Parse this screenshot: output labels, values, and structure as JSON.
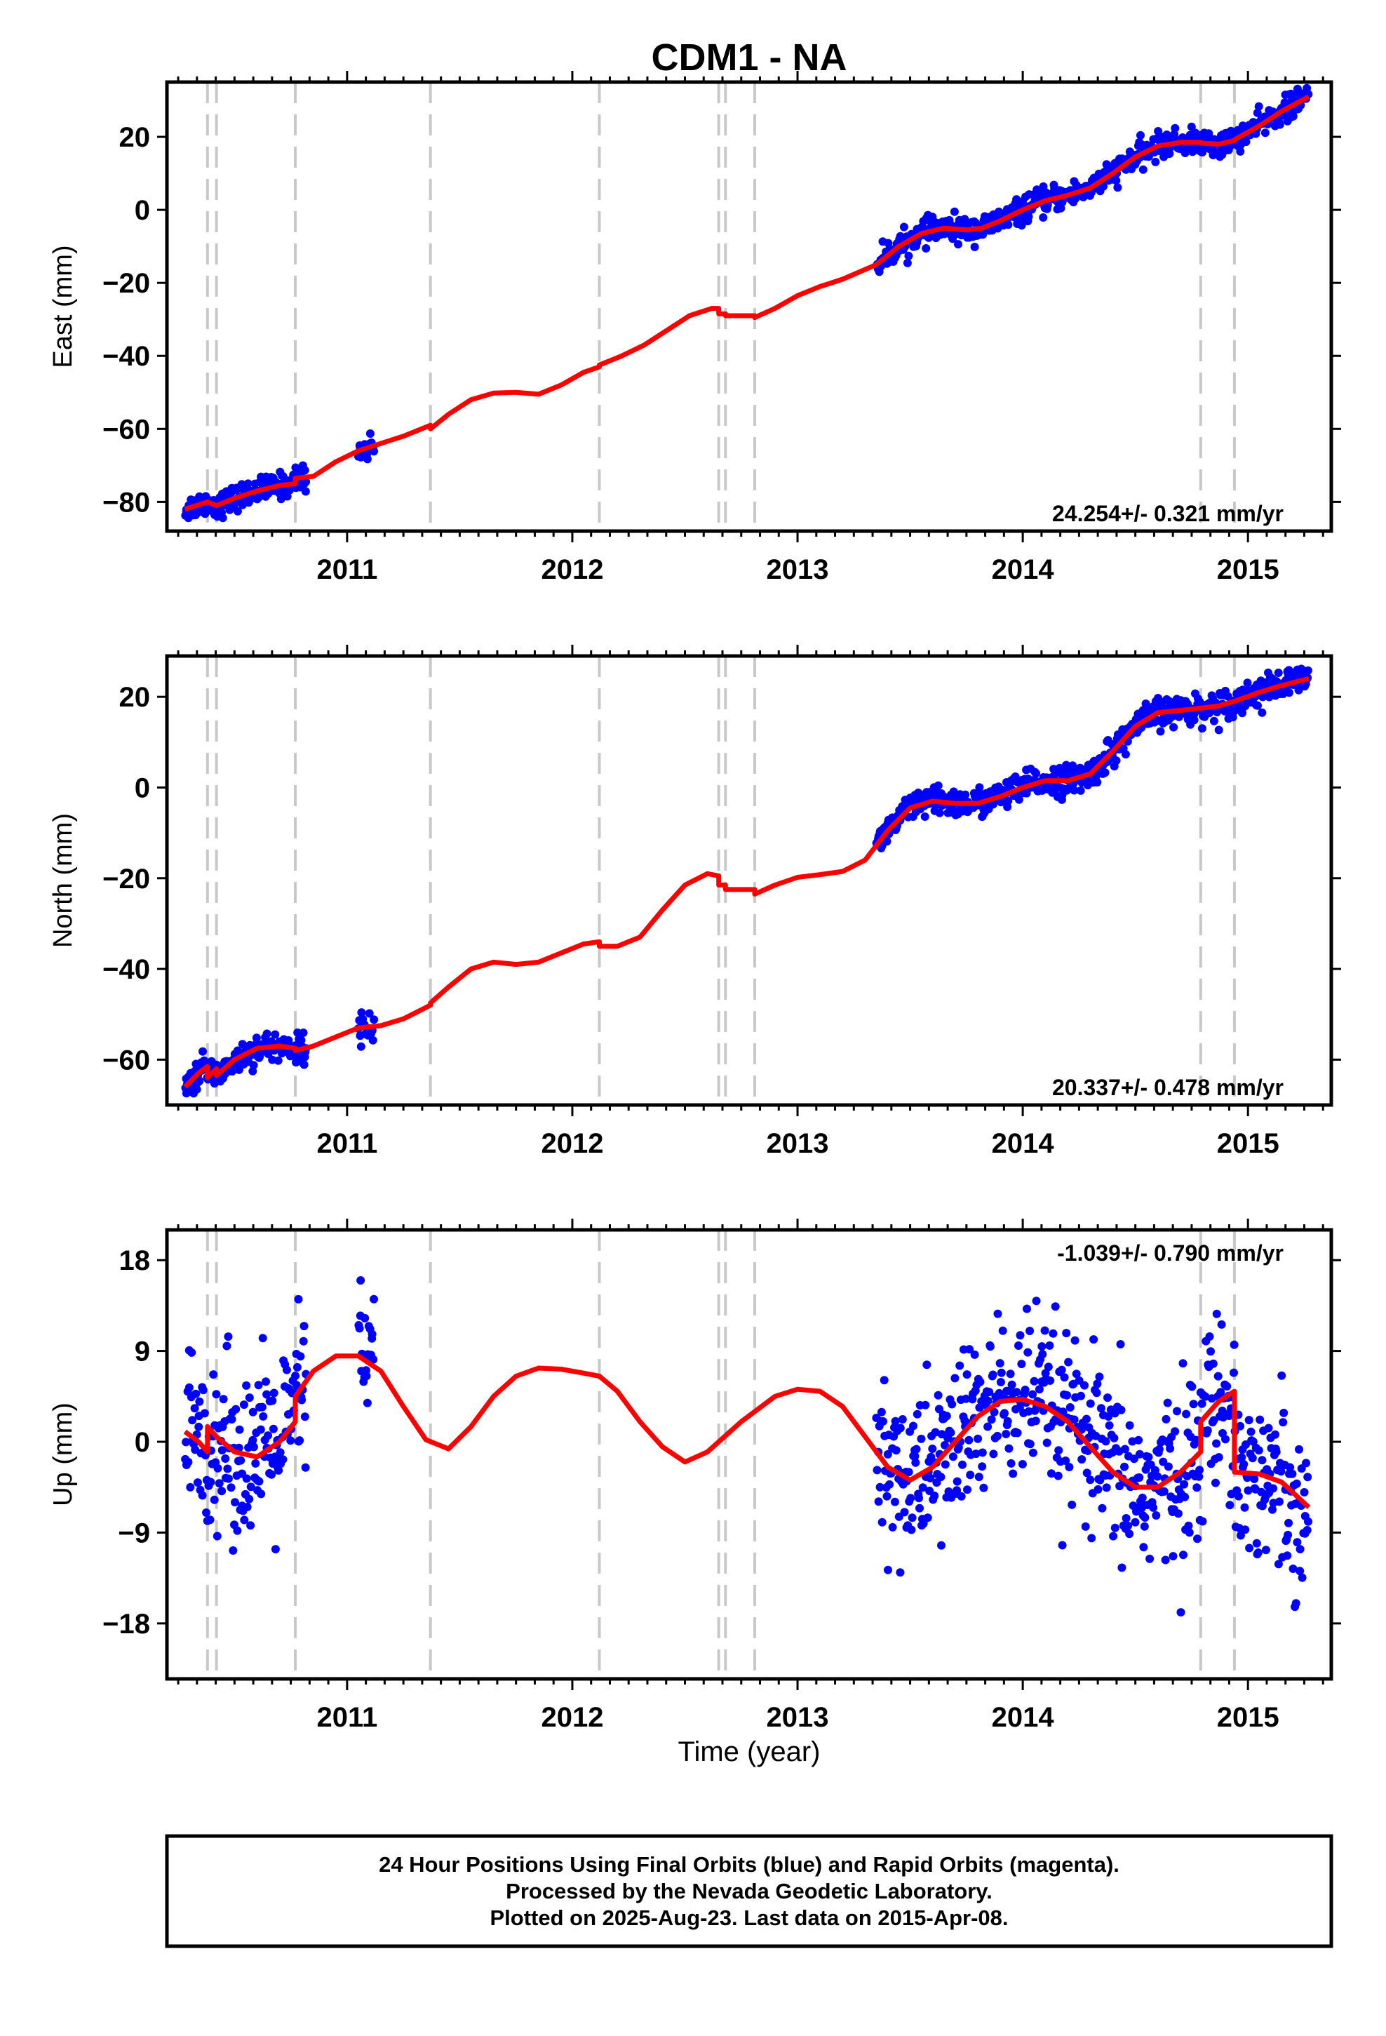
{
  "title": "CDM1 - NA",
  "xlabel": "Time (year)",
  "xtick_labels": [
    "2011",
    "2012",
    "2013",
    "2014",
    "2015"
  ],
  "colors": {
    "points": "#0000ff",
    "model": "#ff0000",
    "dashed_lines": "#c8c8c8"
  },
  "footer": {
    "line1": "24 Hour Positions Using Final Orbits (blue) and Rapid Orbits (magenta).",
    "line2": "Processed by the Nevada Geodetic Laboratory.",
    "line3": "Plotted on 2025-Aug-23. Last data on 2015-Apr-08."
  },
  "chart_data": [
    {
      "type": "scatter",
      "title": "CDM1 - NA",
      "ylabel": "East (mm)",
      "xlim": [
        2010.2,
        2015.37
      ],
      "ylim": [
        -88,
        35
      ],
      "yticks": [
        -80,
        -60,
        -40,
        -20,
        0,
        20
      ],
      "rate_label": "24.254+/- 0.321 mm/yr",
      "rate_position": "bottom-right",
      "step_lines": [
        2010.38,
        2010.42,
        2010.77,
        2011.37,
        2012.12,
        2012.65,
        2012.68,
        2012.81,
        2014.79,
        2014.94
      ],
      "data_spans": [
        [
          2010.28,
          2010.82
        ],
        [
          2011.05,
          2011.12
        ],
        [
          2013.35,
          2015.27
        ]
      ],
      "point_spread": 1.7,
      "model_line": [
        [
          2010.28,
          -82
        ],
        [
          2010.38,
          -80
        ],
        [
          2010.42,
          -81
        ],
        [
          2010.5,
          -79
        ],
        [
          2010.6,
          -77
        ],
        [
          2010.7,
          -75.5
        ],
        [
          2010.77,
          -75
        ],
        [
          2010.77,
          -73.5
        ],
        [
          2010.85,
          -73
        ],
        [
          2010.95,
          -69
        ],
        [
          2011.05,
          -66
        ],
        [
          2011.15,
          -64
        ],
        [
          2011.25,
          -62
        ],
        [
          2011.37,
          -59
        ],
        [
          2011.37,
          -60
        ],
        [
          2011.45,
          -56
        ],
        [
          2011.55,
          -52
        ],
        [
          2011.65,
          -50.2
        ],
        [
          2011.75,
          -50
        ],
        [
          2011.85,
          -50.5
        ],
        [
          2011.95,
          -48
        ],
        [
          2012.05,
          -44.5
        ],
        [
          2012.12,
          -43
        ],
        [
          2012.12,
          -42.5
        ],
        [
          2012.22,
          -40
        ],
        [
          2012.32,
          -37
        ],
        [
          2012.42,
          -33
        ],
        [
          2012.52,
          -29
        ],
        [
          2012.62,
          -27
        ],
        [
          2012.65,
          -27
        ],
        [
          2012.65,
          -28.5
        ],
        [
          2012.68,
          -28.5
        ],
        [
          2012.68,
          -29
        ],
        [
          2012.81,
          -29
        ],
        [
          2012.81,
          -29.5
        ],
        [
          2012.9,
          -27
        ],
        [
          2013.0,
          -23.5
        ],
        [
          2013.1,
          -21
        ],
        [
          2013.2,
          -19
        ],
        [
          2013.35,
          -15
        ],
        [
          2013.45,
          -10
        ],
        [
          2013.55,
          -6.5
        ],
        [
          2013.65,
          -5
        ],
        [
          2013.75,
          -5.5
        ],
        [
          2013.82,
          -5
        ],
        [
          2013.9,
          -3
        ],
        [
          2014.0,
          0
        ],
        [
          2014.1,
          2.5
        ],
        [
          2014.2,
          4
        ],
        [
          2014.3,
          6
        ],
        [
          2014.4,
          10
        ],
        [
          2014.5,
          14.5
        ],
        [
          2014.6,
          17.5
        ],
        [
          2014.7,
          18.5
        ],
        [
          2014.79,
          18.5
        ],
        [
          2014.79,
          18.3
        ],
        [
          2014.87,
          18
        ],
        [
          2014.94,
          19
        ],
        [
          2014.94,
          19.2
        ],
        [
          2015.05,
          23
        ],
        [
          2015.15,
          27
        ],
        [
          2015.27,
          31
        ]
      ]
    },
    {
      "type": "scatter",
      "ylabel": "North (mm)",
      "xlim": [
        2010.2,
        2015.37
      ],
      "ylim": [
        -70,
        29
      ],
      "yticks": [
        -60,
        -40,
        -20,
        0,
        20
      ],
      "rate_label": "20.337+/- 0.478 mm/yr",
      "rate_position": "bottom-right",
      "step_lines": [
        2010.38,
        2010.42,
        2010.77,
        2011.37,
        2012.12,
        2012.65,
        2012.68,
        2012.81,
        2014.79,
        2014.94
      ],
      "data_spans": [
        [
          2010.28,
          2010.82
        ],
        [
          2011.05,
          2011.12
        ],
        [
          2013.35,
          2015.27
        ]
      ],
      "point_spread": 1.6,
      "model_line": [
        [
          2010.28,
          -66
        ],
        [
          2010.34,
          -63
        ],
        [
          2010.38,
          -61.5
        ],
        [
          2010.38,
          -64
        ],
        [
          2010.42,
          -62
        ],
        [
          2010.42,
          -63.5
        ],
        [
          2010.5,
          -60
        ],
        [
          2010.6,
          -57.5
        ],
        [
          2010.7,
          -57
        ],
        [
          2010.77,
          -57.5
        ],
        [
          2010.77,
          -58
        ],
        [
          2010.85,
          -57
        ],
        [
          2010.95,
          -55
        ],
        [
          2011.05,
          -53
        ],
        [
          2011.15,
          -52.5
        ],
        [
          2011.25,
          -51
        ],
        [
          2011.37,
          -48
        ],
        [
          2011.37,
          -47.5
        ],
        [
          2011.45,
          -44
        ],
        [
          2011.55,
          -40
        ],
        [
          2011.65,
          -38.5
        ],
        [
          2011.75,
          -39
        ],
        [
          2011.85,
          -38.5
        ],
        [
          2011.95,
          -36.5
        ],
        [
          2012.05,
          -34.5
        ],
        [
          2012.12,
          -34
        ],
        [
          2012.12,
          -35
        ],
        [
          2012.2,
          -35
        ],
        [
          2012.3,
          -33
        ],
        [
          2012.4,
          -27
        ],
        [
          2012.5,
          -21.5
        ],
        [
          2012.6,
          -19
        ],
        [
          2012.65,
          -19.5
        ],
        [
          2012.65,
          -21.5
        ],
        [
          2012.68,
          -21.5
        ],
        [
          2012.68,
          -22.5
        ],
        [
          2012.81,
          -22.5
        ],
        [
          2012.81,
          -23.5
        ],
        [
          2012.9,
          -21.5
        ],
        [
          2013.0,
          -19.8
        ],
        [
          2013.1,
          -19.2
        ],
        [
          2013.2,
          -18.5
        ],
        [
          2013.3,
          -16
        ],
        [
          2013.4,
          -9.5
        ],
        [
          2013.5,
          -4.5
        ],
        [
          2013.6,
          -3
        ],
        [
          2013.7,
          -3.5
        ],
        [
          2013.8,
          -3.5
        ],
        [
          2013.9,
          -2
        ],
        [
          2014.0,
          0
        ],
        [
          2014.1,
          1.5
        ],
        [
          2014.2,
          1.5
        ],
        [
          2014.3,
          3
        ],
        [
          2014.4,
          8
        ],
        [
          2014.5,
          13.5
        ],
        [
          2014.6,
          16.5
        ],
        [
          2014.7,
          17
        ],
        [
          2014.79,
          17.5
        ],
        [
          2014.87,
          18
        ],
        [
          2014.94,
          19
        ],
        [
          2015.05,
          21
        ],
        [
          2015.15,
          22.5
        ],
        [
          2015.27,
          24
        ]
      ]
    },
    {
      "type": "scatter",
      "ylabel": "Up (mm)",
      "xlim": [
        2010.2,
        2015.37
      ],
      "ylim": [
        -23.5,
        21
      ],
      "yticks": [
        -18,
        -9,
        0,
        9,
        18
      ],
      "rate_label": "-1.039+/- 0.790 mm/yr",
      "rate_position": "top-right",
      "step_lines": [
        2010.38,
        2010.42,
        2010.77,
        2011.37,
        2012.12,
        2012.65,
        2012.68,
        2012.81,
        2014.79,
        2014.94
      ],
      "data_spans": [
        [
          2010.28,
          2010.82
        ],
        [
          2011.05,
          2011.12
        ],
        [
          2013.35,
          2015.27
        ]
      ],
      "point_spread": 4.2,
      "model_line": [
        [
          2010.28,
          1
        ],
        [
          2010.34,
          0
        ],
        [
          2010.38,
          -1
        ],
        [
          2010.38,
          1.5
        ],
        [
          2010.42,
          0.5
        ],
        [
          2010.5,
          -1
        ],
        [
          2010.6,
          -1.5
        ],
        [
          2010.7,
          0
        ],
        [
          2010.77,
          2
        ],
        [
          2010.77,
          4.5
        ],
        [
          2010.85,
          7
        ],
        [
          2010.95,
          8.5
        ],
        [
          2011.05,
          8.5
        ],
        [
          2011.15,
          7
        ],
        [
          2011.25,
          3.5
        ],
        [
          2011.35,
          0.2
        ],
        [
          2011.45,
          -0.7
        ],
        [
          2011.55,
          1.5
        ],
        [
          2011.65,
          4.5
        ],
        [
          2011.75,
          6.5
        ],
        [
          2011.85,
          7.3
        ],
        [
          2011.95,
          7.2
        ],
        [
          2012.05,
          6.8
        ],
        [
          2012.12,
          6.5
        ],
        [
          2012.2,
          5
        ],
        [
          2012.3,
          2
        ],
        [
          2012.4,
          -0.5
        ],
        [
          2012.5,
          -2
        ],
        [
          2012.6,
          -1
        ],
        [
          2012.65,
          0
        ],
        [
          2012.75,
          2
        ],
        [
          2012.81,
          3
        ],
        [
          2012.9,
          4.5
        ],
        [
          2013.0,
          5.2
        ],
        [
          2013.1,
          5
        ],
        [
          2013.2,
          3.5
        ],
        [
          2013.3,
          0.5
        ],
        [
          2013.4,
          -2.5
        ],
        [
          2013.5,
          -3.8
        ],
        [
          2013.6,
          -2.5
        ],
        [
          2013.7,
          0
        ],
        [
          2013.8,
          2.5
        ],
        [
          2013.9,
          4
        ],
        [
          2014.0,
          4.2
        ],
        [
          2014.1,
          3.5
        ],
        [
          2014.2,
          2
        ],
        [
          2014.3,
          -0.5
        ],
        [
          2014.4,
          -3
        ],
        [
          2014.5,
          -4.5
        ],
        [
          2014.6,
          -4.5
        ],
        [
          2014.7,
          -3
        ],
        [
          2014.79,
          -1
        ],
        [
          2014.79,
          2
        ],
        [
          2014.87,
          4
        ],
        [
          2014.94,
          5
        ],
        [
          2014.94,
          -3
        ],
        [
          2015.05,
          -3.2
        ],
        [
          2015.15,
          -4
        ],
        [
          2015.27,
          -6.5
        ]
      ]
    }
  ]
}
